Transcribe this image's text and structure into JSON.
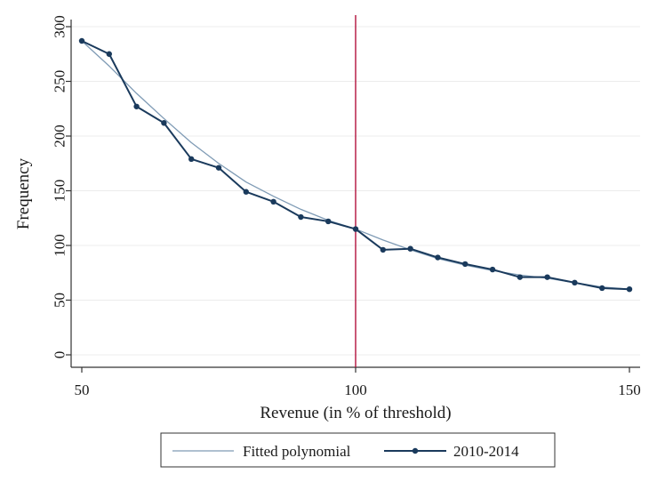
{
  "chart_data": {
    "type": "line",
    "title": "",
    "xlabel": "Revenue (in % of threshold)",
    "ylabel": "Frequency",
    "xlim": [
      50,
      150
    ],
    "ylim": [
      0,
      300
    ],
    "x_ticks": [
      50,
      100,
      150
    ],
    "y_ticks": [
      0,
      50,
      100,
      150,
      200,
      250,
      300
    ],
    "grid": "horizontal",
    "reference_line": {
      "x": 100,
      "color": "#b2123c"
    },
    "legend_position": "bottom",
    "series": [
      {
        "name": "Fitted polynomial",
        "style": "line",
        "color": "#7f9bb5",
        "x": [
          50,
          55,
          60,
          65,
          70,
          75,
          80,
          85,
          90,
          95,
          100,
          105,
          110,
          115,
          120,
          125,
          130,
          135,
          140,
          145,
          150
        ],
        "values": [
          287,
          264,
          239,
          216,
          194,
          175,
          158,
          145,
          133,
          123,
          115,
          105,
          96,
          88,
          82,
          77,
          73,
          70,
          66,
          62,
          60
        ]
      },
      {
        "name": "2010-2014",
        "style": "line-markers",
        "color": "#1a3a5c",
        "x": [
          50,
          55,
          60,
          65,
          70,
          75,
          80,
          85,
          90,
          95,
          100,
          105,
          110,
          115,
          120,
          125,
          130,
          135,
          140,
          145,
          150
        ],
        "values": [
          287,
          275,
          227,
          212,
          179,
          171,
          149,
          140,
          126,
          122,
          115,
          96,
          97,
          89,
          83,
          78,
          71,
          71,
          66,
          61,
          60
        ]
      }
    ]
  }
}
